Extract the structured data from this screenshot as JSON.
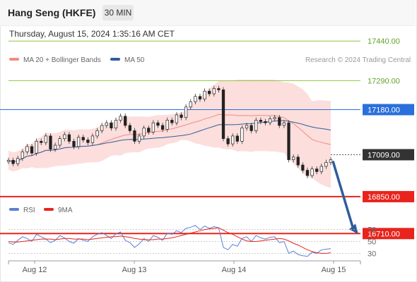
{
  "header": {
    "title": "Hang Seng (HKFE)",
    "timeframe": "30 MIN",
    "timestamp": "Thursday, August 15, 2024 1:35:16 AM CET"
  },
  "legend": {
    "ma20": {
      "label": "MA 20 + Bollinger Bands",
      "color": "#f28b82"
    },
    "ma50": {
      "label": "MA 50",
      "color": "#2f5d9c"
    },
    "copyright": "Research © 2024 Trading Central"
  },
  "rsi_legend": {
    "rsi": {
      "label": "RSI",
      "color": "#5b7fd6"
    },
    "ma9": {
      "label": "9MA",
      "color": "#e8241c"
    }
  },
  "chart_data": [
    {
      "type": "line",
      "subtype": "candlestick",
      "title": "Hang Seng (HKFE)",
      "interval": "30 MIN",
      "x_tick_labels": [
        "Aug 12",
        "Aug 13",
        "Aug 14",
        "Aug 15"
      ],
      "ylim": [
        16660,
        17470
      ],
      "price_series": [
        16988,
        16975,
        16995,
        17020,
        17040,
        17015,
        17060,
        17055,
        17080,
        17030,
        17045,
        17070,
        17085,
        17060,
        17040,
        17075,
        17065,
        17055,
        17080,
        17100,
        17120,
        17130,
        17110,
        17140,
        17155,
        17120,
        17100,
        17060,
        17080,
        17110,
        17095,
        17130,
        17120,
        17105,
        17140,
        17130,
        17160,
        17150,
        17190,
        17210,
        17230,
        17220,
        17250,
        17240,
        17260,
        17255,
        17070,
        17050,
        17080,
        17060,
        17110,
        17120,
        17100,
        17140,
        17135,
        17130,
        17145,
        17150,
        17120,
        17130,
        16990,
        17000,
        16970,
        16950,
        16930,
        16955,
        16945,
        16965,
        16980,
        16990
      ],
      "horizontal_levels": [
        {
          "value": 17440.0,
          "label": "17440.00",
          "style": "resistance"
        },
        {
          "value": 17290.0,
          "label": "17290.00",
          "style": "resistance"
        },
        {
          "value": 17180.0,
          "label": "17180.00",
          "style": "pivot"
        },
        {
          "value": 17009.0,
          "label": "17009.00",
          "style": "last"
        },
        {
          "value": 16850.0,
          "label": "16850.00",
          "style": "support"
        },
        {
          "value": 16710.0,
          "label": "16710.00",
          "style": "support"
        }
      ],
      "indicators": [
        "MA 20 + Bollinger Bands",
        "MA 50"
      ]
    },
    {
      "type": "line",
      "title": "RSI",
      "y_tick_labels": [
        "70",
        "50",
        "30"
      ],
      "ylim": [
        15,
        85
      ],
      "series": [
        {
          "name": "RSI",
          "values": [
            48,
            45,
            52,
            58,
            55,
            50,
            62,
            58,
            54,
            48,
            52,
            60,
            56,
            50,
            47,
            55,
            52,
            50,
            58,
            62,
            65,
            60,
            55,
            63,
            66,
            52,
            48,
            40,
            46,
            55,
            50,
            60,
            57,
            52,
            64,
            62,
            68,
            65,
            72,
            74,
            77,
            70,
            76,
            72,
            75,
            73,
            40,
            36,
            45,
            42,
            55,
            58,
            50,
            60,
            56,
            54,
            57,
            58,
            48,
            50,
            30,
            34,
            28,
            26,
            25,
            32,
            30,
            36,
            37,
            38
          ]
        },
        {
          "name": "9MA",
          "values": [
            50,
            49,
            49,
            50,
            51,
            52,
            53,
            54,
            54,
            54,
            53,
            54,
            55,
            55,
            54,
            54,
            54,
            53,
            54,
            55,
            56,
            57,
            58,
            58,
            59,
            58,
            57,
            55,
            54,
            53,
            53,
            53,
            54,
            54,
            55,
            56,
            58,
            60,
            62,
            64,
            66,
            68,
            70,
            71,
            72,
            73,
            69,
            65,
            62,
            58,
            54,
            51,
            50,
            50,
            51,
            52,
            53,
            54,
            55,
            54,
            51,
            47,
            44,
            40,
            36,
            33,
            31,
            30,
            30,
            31
          ]
        }
      ]
    }
  ]
}
